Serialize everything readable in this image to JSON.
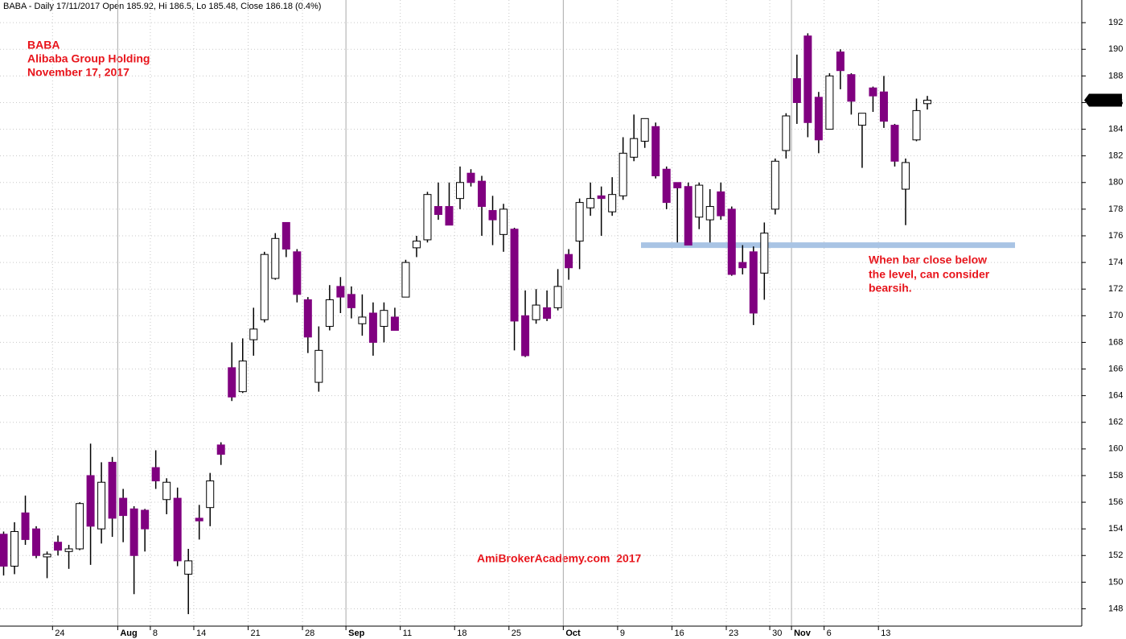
{
  "chart_data": {
    "type": "candlestick",
    "header": "BABA - Daily 17/11/2017 Open 185.92, Hi 186.5, Lo 185.48, Close 186.18 (0.4%)",
    "annotations": [
      "BABA",
      "Alibaba Group Holding",
      "November 17, 2017"
    ],
    "note": [
      "When bar close below",
      "the level, can consider",
      "bearsih."
    ],
    "watermark": "AmiBrokerAcademy.com  2017",
    "level": 175.3,
    "level_color": "#a9c4e4",
    "up_color": "#ffffff",
    "down_color": "#800080",
    "categories": [
      null,
      null,
      null,
      null,
      null,
      "24",
      null,
      null,
      null,
      null,
      null,
      "Aug",
      null,
      null,
      "8",
      null,
      null,
      null,
      "14",
      null,
      null,
      null,
      null,
      "21",
      null,
      null,
      null,
      null,
      "28",
      null,
      null,
      null,
      "Sep",
      null,
      null,
      null,
      null,
      "11",
      null,
      null,
      null,
      null,
      "18",
      null,
      null,
      null,
      null,
      "25",
      null,
      null,
      null,
      null,
      "Oct",
      null,
      null,
      null,
      null,
      "9",
      null,
      null,
      null,
      null,
      "16",
      null,
      null,
      null,
      null,
      "23",
      null,
      null,
      null,
      "30",
      null,
      "Nov",
      null,
      null,
      "6",
      null,
      null,
      null,
      null,
      "13",
      null,
      null,
      null,
      null
    ],
    "open": [
      153.6,
      151.2,
      155.2,
      154,
      151.9,
      153,
      152.3,
      152.5,
      158,
      154,
      159,
      156.3,
      155.5,
      155.4,
      158.6,
      156.2,
      156.3,
      150.6,
      154.8,
      155.6,
      160.3,
      166.1,
      164.3,
      168.2,
      169.7,
      172.8,
      177,
      174.8,
      171.2,
      165,
      169.2,
      172.2,
      171.6,
      169.4,
      170.2,
      169.2,
      169.9,
      171.4,
      175.1,
      175.7,
      178.2,
      178.2,
      178.8,
      180.7,
      180.1,
      177.9,
      176.1,
      176.5,
      170,
      169.7,
      170.6,
      170.6,
      174.6,
      175.6,
      178.1,
      179,
      177.8,
      179,
      181.9,
      183.1,
      184.2,
      181,
      180,
      179.7,
      177.4,
      177.2,
      179.3,
      178,
      174,
      174.8,
      173.2,
      178,
      182.4,
      187.8,
      191,
      186.4,
      184,
      189.8,
      188.1,
      184.3,
      187.1,
      186.8,
      184.3,
      179.5,
      183.2,
      185.92
    ],
    "high": [
      153.8,
      154.5,
      156.5,
      154.2,
      152.3,
      153.5,
      152.8,
      156,
      160.4,
      159,
      159.4,
      157,
      155.7,
      155.5,
      159.9,
      157.8,
      157.1,
      152.5,
      155.8,
      158.2,
      160.5,
      168,
      168.3,
      170.6,
      174.8,
      176.2,
      177,
      175,
      171.4,
      169.2,
      172.3,
      172.9,
      172.2,
      171.6,
      171,
      171,
      170.6,
      174.2,
      176,
      179.3,
      180,
      180,
      181.2,
      181,
      180.5,
      179,
      178.4,
      176.6,
      171.9,
      172,
      171.9,
      173.5,
      175,
      178.8,
      180,
      179.7,
      180.4,
      183.4,
      185.1,
      184.8,
      184.5,
      181.2,
      180,
      180,
      180,
      179.5,
      180,
      178.2,
      175.3,
      175.2,
      177,
      181.8,
      185.2,
      189.6,
      191.2,
      186.8,
      188.2,
      190,
      188.2,
      185.2,
      187.2,
      188,
      184.4,
      181.8,
      186.3,
      186.5
    ],
    "low": [
      150.5,
      150.6,
      152.8,
      151.8,
      150.3,
      152,
      151,
      152.4,
      151.3,
      152.9,
      153.4,
      153,
      149.1,
      152.3,
      157,
      155.1,
      151.2,
      147.6,
      153.2,
      154.2,
      158.8,
      163.6,
      164.2,
      167,
      169.5,
      172.7,
      174.4,
      171,
      167.2,
      164.3,
      168.9,
      170.2,
      169.8,
      168.5,
      167,
      168,
      168.9,
      171.4,
      174.4,
      175.5,
      177.2,
      176.8,
      178,
      179.7,
      176,
      175.3,
      174.8,
      167.4,
      166.9,
      169.4,
      169.6,
      170.4,
      172.7,
      173.5,
      177.5,
      176,
      177.5,
      178.7,
      181.6,
      182.6,
      180.3,
      178,
      175.5,
      175.3,
      176.5,
      175.5,
      177.2,
      173,
      173.1,
      169.3,
      171.2,
      177.6,
      181.8,
      184.4,
      183.4,
      182.2,
      184,
      187,
      185.1,
      181.1,
      185.3,
      184.1,
      181.2,
      176.8,
      183.1,
      185.48
    ],
    "close": [
      151.2,
      153.8,
      153.2,
      152,
      152.1,
      152.4,
      152.5,
      155.9,
      154.2,
      157.5,
      154.8,
      155,
      152,
      154,
      157.6,
      157.5,
      151.6,
      151.6,
      154.6,
      157.6,
      159.6,
      163.9,
      166.6,
      169,
      174.6,
      175.8,
      175,
      171.6,
      168.4,
      167.4,
      171.2,
      171.4,
      170.6,
      169.9,
      168,
      170.4,
      168.9,
      174,
      175.6,
      179.1,
      177.6,
      176.8,
      180,
      180,
      178.2,
      177.2,
      178,
      169.6,
      167,
      170.8,
      169.8,
      172.2,
      173.6,
      178.5,
      178.8,
      178.8,
      179.1,
      182.2,
      183.3,
      184.8,
      180.5,
      178.5,
      179.6,
      175.3,
      179.8,
      178.2,
      177.5,
      173.1,
      173.6,
      170.2,
      176.2,
      181.6,
      185,
      186,
      184.5,
      183.2,
      188,
      188.4,
      186.1,
      185.2,
      186.5,
      184.6,
      181.6,
      181.5,
      185.4,
      186.18
    ],
    "ylim": [
      146.7,
      193.7
    ],
    "yticks": [
      148,
      150,
      152,
      154,
      156,
      158,
      160,
      162,
      164,
      166,
      168,
      170,
      172,
      174,
      176,
      178,
      180,
      182,
      184,
      186,
      188,
      190,
      192
    ],
    "grid": true
  }
}
